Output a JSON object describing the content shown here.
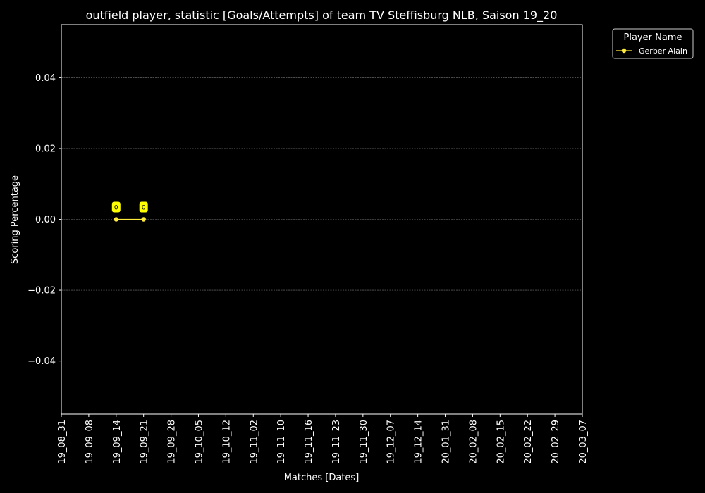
{
  "chart_data": {
    "type": "line",
    "title": "outfield player, statistic [Goals/Attempts] of team TV Steffisburg NLB, Saison 19_20",
    "xlabel": "Matches [Dates]",
    "ylabel": "Scoring Percentage",
    "x_ticks": [
      "19_08_31",
      "19_09_08",
      "19_09_14",
      "19_09_21",
      "19_09_28",
      "19_10_05",
      "19_10_12",
      "19_11_02",
      "19_11_10",
      "19_11_16",
      "19_11_23",
      "19_11_30",
      "19_12_07",
      "19_12_14",
      "20_01_31",
      "20_02_08",
      "20_02_15",
      "20_02_22",
      "20_02_29",
      "20_03_07"
    ],
    "y_ticks": [
      0.04,
      0.02,
      0.0,
      -0.02,
      -0.04
    ],
    "y_tick_labels": [
      "0.04",
      "0.02",
      "0.00",
      "−0.02",
      "−0.04"
    ],
    "ylim": [
      -0.055,
      0.055
    ],
    "grid": true,
    "legend": {
      "title": "Player Name",
      "placement": "outside-top-right"
    },
    "series": [
      {
        "name": "Gerber Alain",
        "color": "#ffeb3b",
        "x": [
          "19_09_14",
          "19_09_21"
        ],
        "y": [
          0,
          0
        ],
        "labels": [
          "0",
          "0"
        ]
      }
    ],
    "colors": {
      "background": "#000000",
      "axis": "#ffffff",
      "grid": "#777777",
      "label_box": "#ffff00"
    }
  }
}
